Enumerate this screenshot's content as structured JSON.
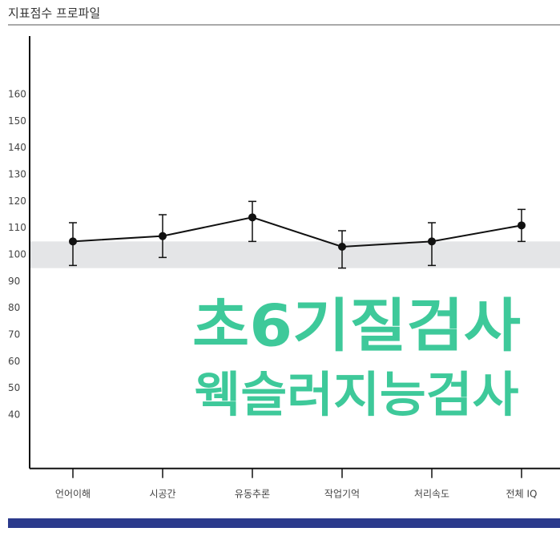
{
  "title": "지표점수 프로파일",
  "chart_data": {
    "type": "line",
    "categories": [
      "언어이해",
      "시공간",
      "유동추론",
      "작업기억",
      "처리속도",
      "전체 IQ"
    ],
    "series": [
      {
        "color": "#111111",
        "values": [
          105,
          107,
          114,
          103,
          105,
          111
        ],
        "lower": [
          96,
          99,
          105,
          95,
          96,
          105
        ],
        "upper": [
          112,
          115,
          120,
          109,
          112,
          117
        ]
      }
    ],
    "reference_band": [
      95,
      105
    ],
    "band_color": "#e4e5e7",
    "ylim": [
      20,
      180
    ],
    "yticks": [
      40,
      50,
      60,
      70,
      80,
      90,
      100,
      110,
      120,
      130,
      140,
      150,
      160
    ],
    "grid": false,
    "annotations": [
      "초6기질검사",
      "웩슬러지능검사"
    ],
    "annotation_color": "#3ec99a"
  },
  "footer_color": "#2b3a8c"
}
